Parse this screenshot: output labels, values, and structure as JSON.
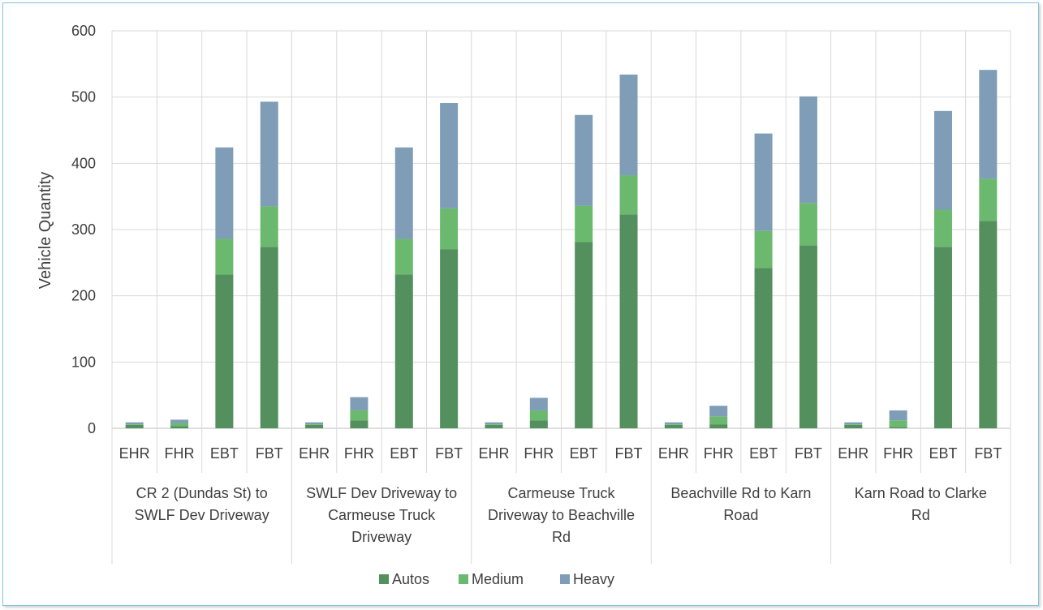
{
  "chart_data": {
    "type": "bar",
    "stacked": true,
    "ylabel": "Vehicle Quantity",
    "ylim": [
      0,
      600
    ],
    "yticks": [
      0,
      100,
      200,
      300,
      400,
      500,
      600
    ],
    "grid": true,
    "legend_position": "bottom",
    "groups": [
      "CR 2 (Dundas St) to SWLF Dev Driveway",
      "SWLF Dev Driveway to Carmeuse Truck Driveway",
      "Carmeuse Truck Driveway to Beachville Rd",
      "Beachville Rd to Karn Road",
      "Karn Road to Clarke Rd"
    ],
    "group_label_lines": [
      [
        "CR 2 (Dundas St) to",
        "SWLF Dev Driveway"
      ],
      [
        "SWLF Dev Driveway to",
        "Carmeuse Truck",
        "Driveway"
      ],
      [
        "Carmeuse Truck",
        "Driveway to Beachville",
        "Rd"
      ],
      [
        "Beachville Rd to Karn",
        "Road"
      ],
      [
        "Karn Road to Clarke",
        "Rd"
      ]
    ],
    "categories": [
      "EHR",
      "FHR",
      "EBT",
      "FBT",
      "EHR",
      "FHR",
      "EBT",
      "FBT",
      "EHR",
      "FHR",
      "EBT",
      "FBT",
      "EHR",
      "FHR",
      "EBT",
      "FBT",
      "EHR",
      "FHR",
      "EBT",
      "FBT"
    ],
    "series": [
      {
        "name": "Autos",
        "color": "#548f5e",
        "values": [
          5,
          3,
          232,
          274,
          5,
          12,
          232,
          270,
          5,
          12,
          281,
          323,
          5,
          6,
          242,
          276,
          5,
          2,
          274,
          313
        ]
      },
      {
        "name": "Medium",
        "color": "#6ab96f",
        "values": [
          1,
          5,
          54,
          61,
          1,
          15,
          54,
          62,
          1,
          15,
          55,
          59,
          1,
          12,
          56,
          64,
          1,
          10,
          56,
          64
        ]
      },
      {
        "name": "Heavy",
        "color": "#7f9db7",
        "values": [
          3,
          5,
          138,
          158,
          3,
          20,
          138,
          159,
          3,
          19,
          137,
          152,
          3,
          16,
          147,
          161,
          3,
          15,
          149,
          164
        ]
      }
    ]
  }
}
